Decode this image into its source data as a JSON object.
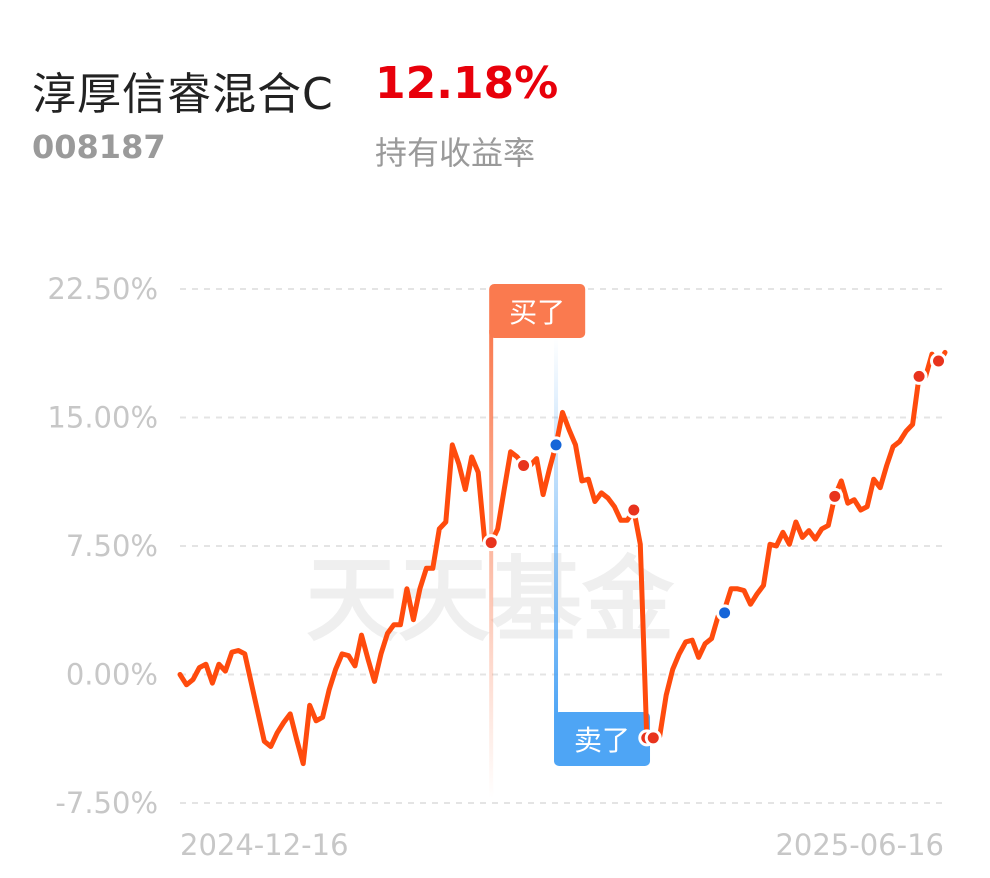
{
  "header": {
    "fund_name": "淳厚信睿混合C",
    "return_value": "12.18%",
    "fund_code": "008187",
    "return_label": "持有收益率"
  },
  "colors": {
    "line": "#ff4b0d",
    "buy_marker": "#fa7a4f",
    "sell_marker": "#4ea5f5",
    "dot_red": "#e8331d",
    "dot_blue": "#1565d8",
    "grid": "#e4e4e4",
    "return_red": "#e8000b"
  },
  "chart_data": {
    "type": "line",
    "watermark": "天天基金",
    "y_tick_labels": [
      "22.50%",
      "15.00%",
      "7.50%",
      "0.00%",
      "-7.50%"
    ],
    "y_ticks": [
      22.5,
      15.0,
      7.5,
      0.0,
      -7.5
    ],
    "ylim": [
      -7.5,
      22.5
    ],
    "x_tick_labels": [
      "2024-12-16",
      "2025-06-16"
    ],
    "grid": true,
    "series": [
      {
        "values": [
          0.0,
          -0.6,
          -0.3,
          0.4,
          0.6,
          -0.5,
          0.6,
          0.2,
          1.3,
          1.4,
          1.2,
          -0.5,
          -2.2,
          -3.9,
          -4.2,
          -3.4,
          -2.8,
          -2.3,
          -3.8,
          -5.2,
          -1.8,
          -2.7,
          -2.5,
          -0.9,
          0.3,
          1.2,
          1.1,
          0.5,
          2.3,
          0.9,
          -0.4,
          1.2,
          2.4,
          2.9,
          2.9,
          5.0,
          3.2,
          5.0,
          6.2,
          6.2,
          8.5,
          8.9,
          13.4,
          12.3,
          10.8,
          12.7,
          11.8,
          7.8,
          7.7,
          8.5,
          10.8,
          13.0,
          12.7,
          12.2,
          12.2,
          12.6,
          10.5,
          12.0,
          13.4,
          15.3,
          14.3,
          13.4,
          11.3,
          11.4,
          10.1,
          10.6,
          10.3,
          9.8,
          9.0,
          9.0,
          9.6,
          7.6,
          -3.7,
          -3.7,
          -3.6,
          -1.2,
          0.3,
          1.2,
          1.9,
          2.0,
          1.0,
          1.8,
          2.1,
          3.4,
          3.8,
          5.0,
          5.0,
          4.9,
          4.1,
          4.7,
          5.2,
          7.6,
          7.5,
          8.3,
          7.6,
          8.9,
          8.0,
          8.4,
          7.9,
          8.5,
          8.7,
          10.4,
          11.3,
          10.0,
          10.2,
          9.6,
          9.8,
          11.4,
          10.9,
          12.2,
          13.3,
          13.6,
          14.2,
          14.6,
          17.4,
          17.4,
          18.7,
          18.1,
          18.8
        ],
        "x_start": "2024-12-16",
        "x_end": "2025-06-26"
      }
    ],
    "markers": [
      {
        "label": "买了",
        "type": "buy",
        "value": 7.7
      },
      {
        "label": "卖了",
        "type": "sell",
        "value": 13.4
      }
    ],
    "red_dot_values": [
      7.7,
      -3.7,
      -3.7,
      10.4,
      9.6,
      12.2,
      17.4,
      18.3
    ],
    "blue_dot_values": [
      13.4,
      3.6
    ]
  }
}
